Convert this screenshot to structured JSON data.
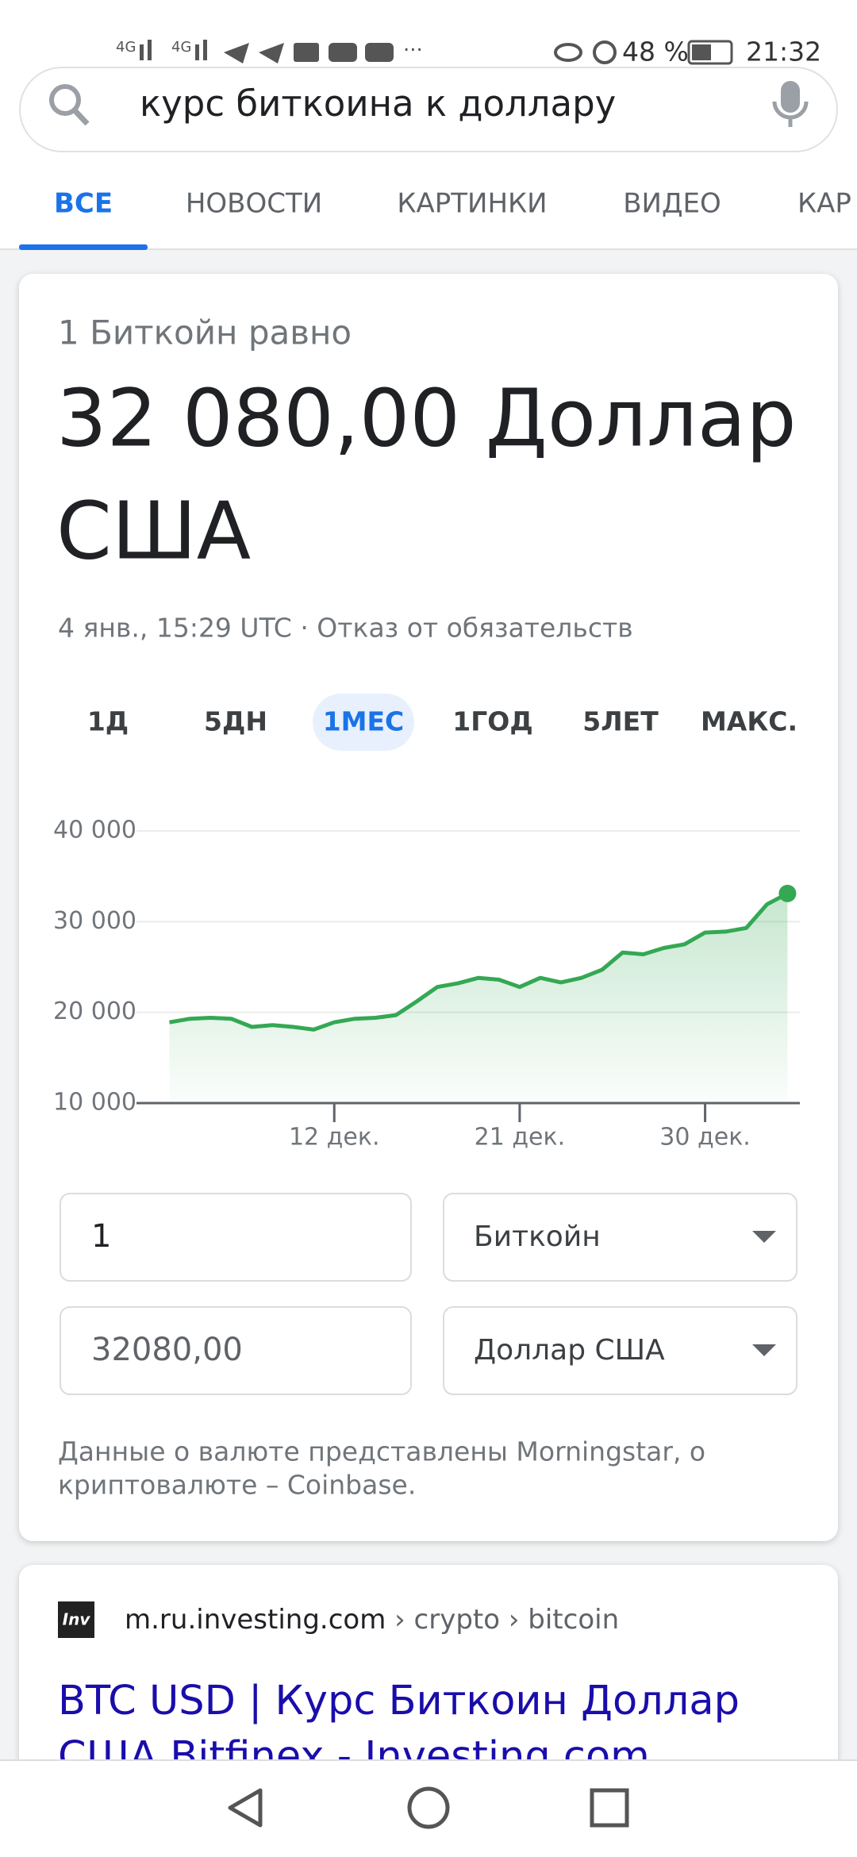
{
  "status_bar": {
    "battery": "48 %",
    "time": "21:32"
  },
  "search": {
    "query": "курс биткоина к доллару"
  },
  "tabs": [
    "ВСЕ",
    "НОВОСТИ",
    "КАРТИНКИ",
    "ВИДЕО",
    "КАР"
  ],
  "card": {
    "intro": "1 Биткойн равно",
    "result_lines": [
      "32 080,00 Доллар",
      "США"
    ],
    "timestamp": "4 янв., 15:29 UTC · Отказ от обязательств",
    "ranges": [
      "1Д",
      "5ДН",
      "1МЕС",
      "1ГОД",
      "5ЛЕТ",
      "МАКС."
    ],
    "active_range": 2,
    "converter": {
      "amount": "1",
      "from": "Биткойн",
      "result": "32080,00",
      "to": "Доллар США"
    },
    "source_note": [
      "Данные о валюте представлены Morningstar, о",
      "криптовалюте – Coinbase."
    ]
  },
  "chart_data": {
    "type": "line",
    "x": [
      4,
      5,
      6,
      7,
      8,
      9,
      10,
      11,
      12,
      13,
      14,
      15,
      16,
      17,
      18,
      19,
      20,
      21,
      22,
      23,
      24,
      25,
      26,
      27,
      28,
      29,
      30,
      31,
      32,
      33,
      34
    ],
    "values": [
      18900,
      19300,
      19400,
      19300,
      18400,
      18600,
      18400,
      18100,
      18900,
      19300,
      19400,
      19700,
      21200,
      22800,
      23200,
      23800,
      23600,
      22800,
      23800,
      23300,
      23800,
      24700,
      26600,
      26400,
      27100,
      27500,
      28800,
      28900,
      29300,
      31900,
      33100
    ],
    "color": "#34a853",
    "area": true,
    "xlim": [
      2.4,
      34.6
    ],
    "ylim": [
      10000,
      40000
    ],
    "xticks": [
      {
        "value": 12,
        "label": "12 дек."
      },
      {
        "value": 21,
        "label": "21 дек."
      },
      {
        "value": 30,
        "label": "30 дек."
      }
    ],
    "yticks": [
      {
        "value": 10000,
        "label": "10 000"
      },
      {
        "value": 20000,
        "label": "20 000"
      },
      {
        "value": 30000,
        "label": "30 000"
      },
      {
        "value": 40000,
        "label": "40 000"
      }
    ],
    "grid": true
  },
  "result": {
    "favicon": "Inv",
    "site": "m.ru.investing.com",
    "breadcrumb": " › crypto › bitcoin",
    "title_lines": [
      "BTC USD | Курс Биткоин Доллар",
      "США Bitfinex - Investing.com"
    ]
  }
}
